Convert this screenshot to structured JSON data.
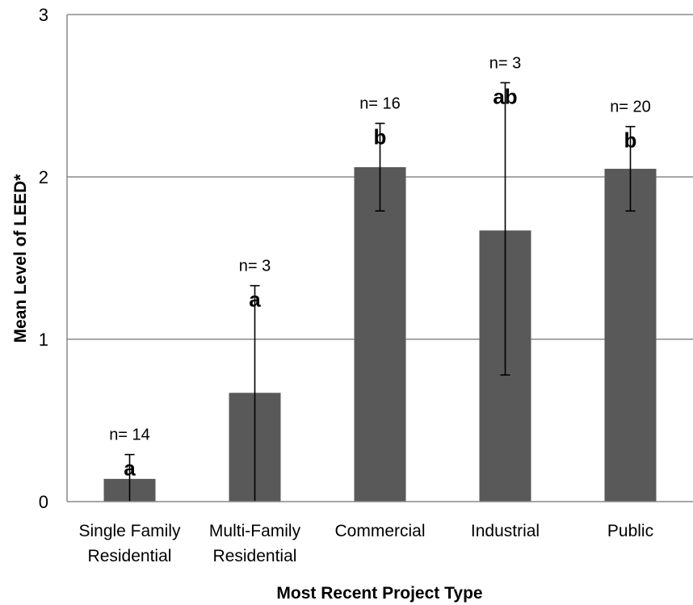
{
  "chart_data": {
    "type": "bar",
    "title": "",
    "xlabel": "Most Recent Project Type",
    "ylabel": "Mean Level of LEED*",
    "ylim": [
      0,
      3
    ],
    "yticks": [
      "0",
      "1",
      "2",
      "3"
    ],
    "grid": true,
    "bar_color": "#595959",
    "categories": [
      {
        "lines": [
          "Single Family",
          "Residential"
        ]
      },
      {
        "lines": [
          "Multi-Family",
          "Residential"
        ]
      },
      {
        "lines": [
          "Commercial"
        ]
      },
      {
        "lines": [
          "Industrial"
        ]
      },
      {
        "lines": [
          "Public"
        ]
      }
    ],
    "values": [
      0.14,
      0.67,
      2.06,
      1.67,
      2.05
    ],
    "error_low": [
      0.0,
      0.0,
      1.79,
      0.78,
      1.79
    ],
    "error_high": [
      0.29,
      1.33,
      2.33,
      2.58,
      2.31
    ],
    "n_labels": [
      "n= 14",
      "n= 3",
      "n= 16",
      "n= 3",
      "n= 20"
    ],
    "sig_labels": [
      "a",
      "a",
      "b",
      "ab",
      "b"
    ]
  }
}
